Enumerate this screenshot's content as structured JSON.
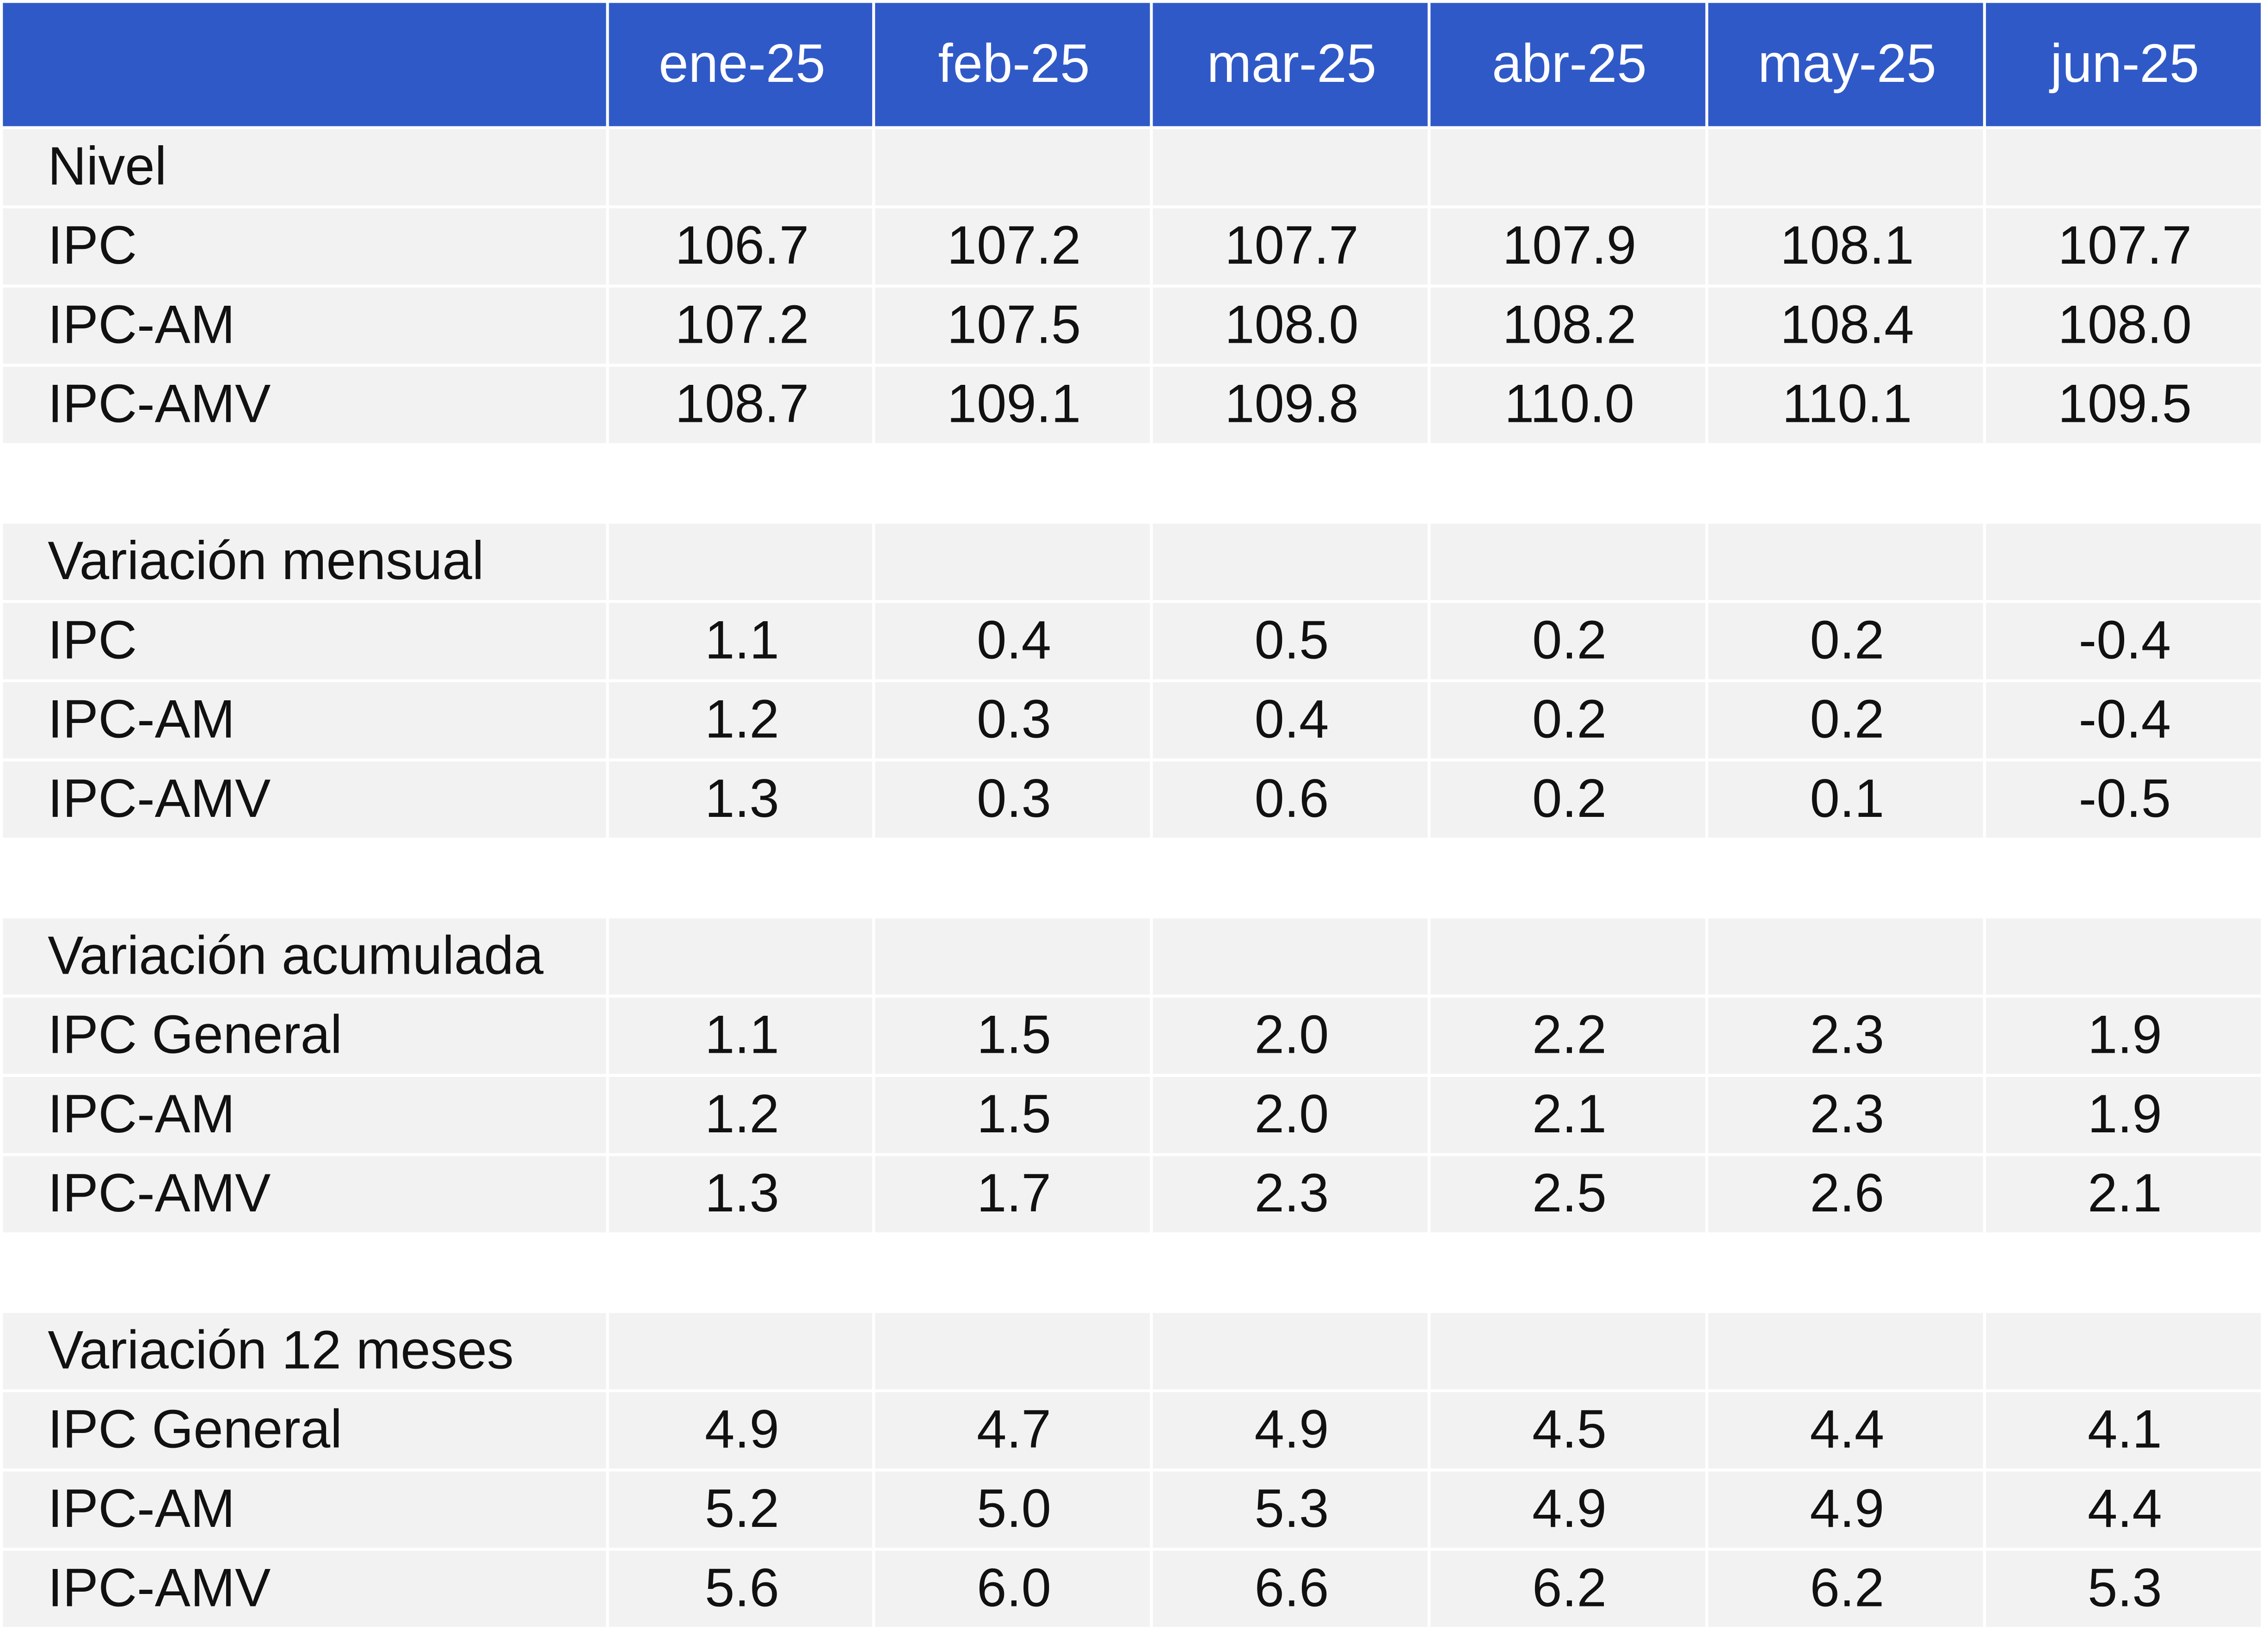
{
  "header": {
    "columns": [
      "ene-25",
      "feb-25",
      "mar-25",
      "abr-25",
      "may-25",
      "jun-25"
    ]
  },
  "sections": [
    {
      "title": "Nivel",
      "rows": [
        {
          "label": "IPC",
          "values": [
            "106.7",
            "107.2",
            "107.7",
            "107.9",
            "108.1",
            "107.7"
          ]
        },
        {
          "label": "IPC-AM",
          "values": [
            "107.2",
            "107.5",
            "108.0",
            "108.2",
            "108.4",
            "108.0"
          ]
        },
        {
          "label": "IPC-AMV",
          "values": [
            "108.7",
            "109.1",
            "109.8",
            "110.0",
            "110.1",
            "109.5"
          ]
        }
      ]
    },
    {
      "title": "Variación mensual",
      "rows": [
        {
          "label": "IPC",
          "values": [
            "1.1",
            "0.4",
            "0.5",
            "0.2",
            "0.2",
            "-0.4"
          ]
        },
        {
          "label": "IPC-AM",
          "values": [
            "1.2",
            "0.3",
            "0.4",
            "0.2",
            "0.2",
            "-0.4"
          ]
        },
        {
          "label": "IPC-AMV",
          "values": [
            "1.3",
            "0.3",
            "0.6",
            "0.2",
            "0.1",
            "-0.5"
          ]
        }
      ]
    },
    {
      "title": "Variación acumulada",
      "rows": [
        {
          "label": "IPC General",
          "values": [
            "1.1",
            "1.5",
            "2.0",
            "2.2",
            "2.3",
            "1.9"
          ]
        },
        {
          "label": "IPC-AM",
          "values": [
            "1.2",
            "1.5",
            "2.0",
            "2.1",
            "2.3",
            "1.9"
          ]
        },
        {
          "label": "IPC-AMV",
          "values": [
            "1.3",
            "1.7",
            "2.3",
            "2.5",
            "2.6",
            "2.1"
          ]
        }
      ]
    },
    {
      "title": "Variación 12 meses",
      "rows": [
        {
          "label": "IPC General",
          "values": [
            "4.9",
            "4.7",
            "4.9",
            "4.5",
            "4.4",
            "4.1"
          ]
        },
        {
          "label": "IPC-AM",
          "values": [
            "5.2",
            "5.0",
            "5.3",
            "4.9",
            "4.9",
            "4.4"
          ]
        },
        {
          "label": "IPC-AMV",
          "values": [
            "5.6",
            "6.0",
            "6.6",
            "6.2",
            "6.2",
            "5.3"
          ]
        }
      ]
    }
  ]
}
